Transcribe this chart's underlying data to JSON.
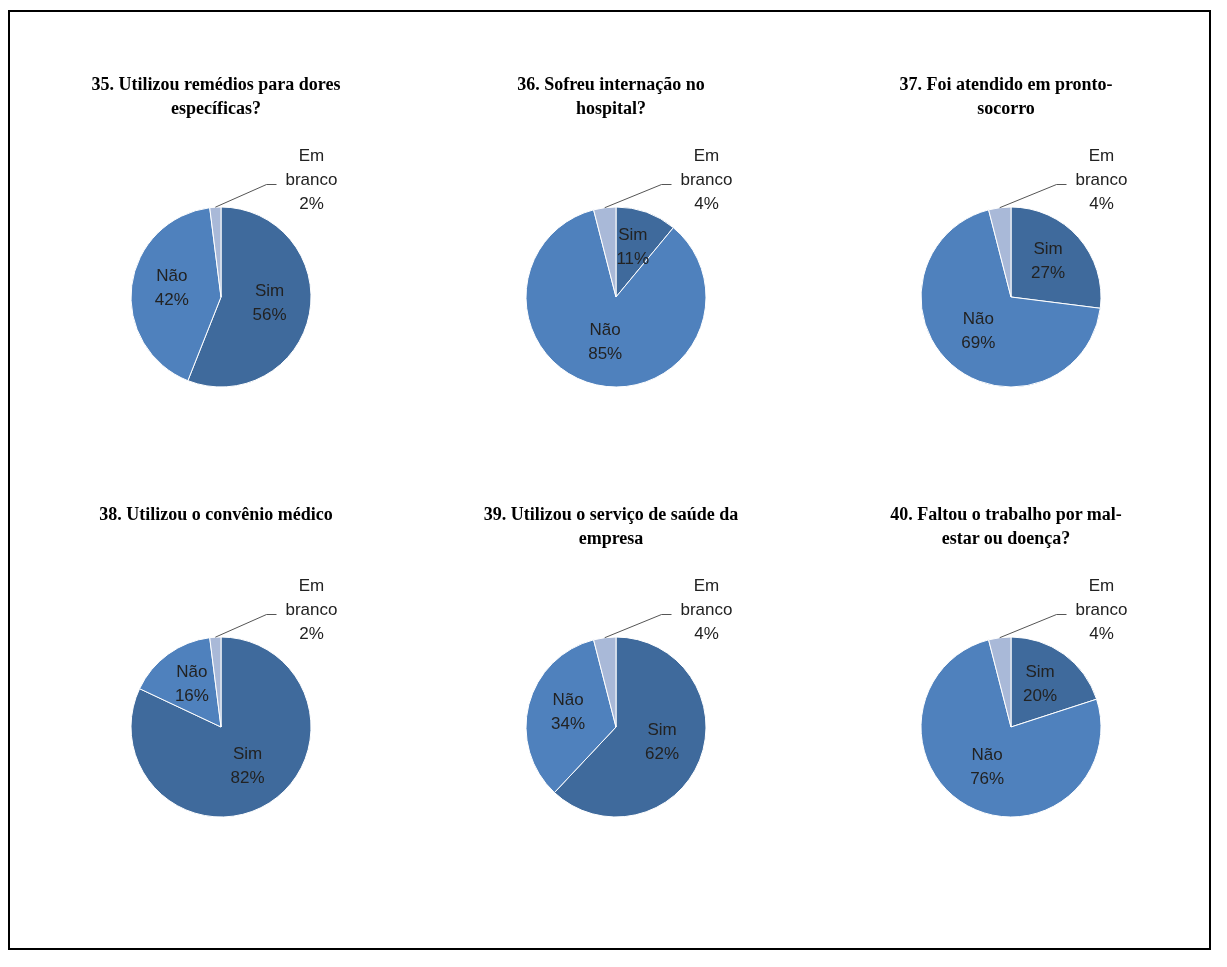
{
  "chart_data": [
    {
      "type": "pie",
      "title": "35. Utilizou  remédios para dores específicas?",
      "categories": [
        "Sim",
        "Não",
        "Em branco"
      ],
      "values": [
        56,
        42,
        2
      ],
      "value_labels": [
        "56%",
        "42%",
        "2%"
      ],
      "colors": [
        "#3f6a9c",
        "#4f81bd",
        "#a9b9d8"
      ],
      "legend": false
    },
    {
      "type": "pie",
      "title": "36. Sofreu internação no hospital?",
      "categories": [
        "Sim",
        "Não",
        "Em branco"
      ],
      "values": [
        11,
        85,
        4
      ],
      "value_labels": [
        "11%",
        "85%",
        "4%"
      ],
      "colors": [
        "#3f6a9c",
        "#4f81bd",
        "#a9b9d8"
      ],
      "legend": false
    },
    {
      "type": "pie",
      "title": "37. Foi atendido em pronto-socorro",
      "categories": [
        "Sim",
        "Não",
        "Em branco"
      ],
      "values": [
        27,
        69,
        4
      ],
      "value_labels": [
        "27%",
        "69%",
        "4%"
      ],
      "colors": [
        "#3f6a9c",
        "#4f81bd",
        "#a9b9d8"
      ],
      "legend": false
    },
    {
      "type": "pie",
      "title": "38. Utilizou  o convênio médico",
      "categories": [
        "Sim",
        "Não",
        "Em branco"
      ],
      "values": [
        82,
        16,
        2
      ],
      "value_labels": [
        "82%",
        "16%",
        "2%"
      ],
      "colors": [
        "#3f6a9c",
        "#4f81bd",
        "#a9b9d8"
      ],
      "legend": false
    },
    {
      "type": "pie",
      "title": "39. Utilizou  o serviço de saúde da empresa",
      "categories": [
        "Sim",
        "Não",
        "Em branco"
      ],
      "values": [
        62,
        34,
        4
      ],
      "value_labels": [
        "62%",
        "34%",
        "4%"
      ],
      "colors": [
        "#3f6a9c",
        "#4f81bd",
        "#a9b9d8"
      ],
      "legend": false
    },
    {
      "type": "pie",
      "title": "40. Faltou o trabalho por mal-estar ou doença?",
      "categories": [
        "Sim",
        "Não",
        "Em branco"
      ],
      "values": [
        20,
        76,
        4
      ],
      "value_labels": [
        "20%",
        "76%",
        "4%"
      ],
      "colors": [
        "#3f6a9c",
        "#4f81bd",
        "#a9b9d8"
      ],
      "legend": false
    }
  ]
}
